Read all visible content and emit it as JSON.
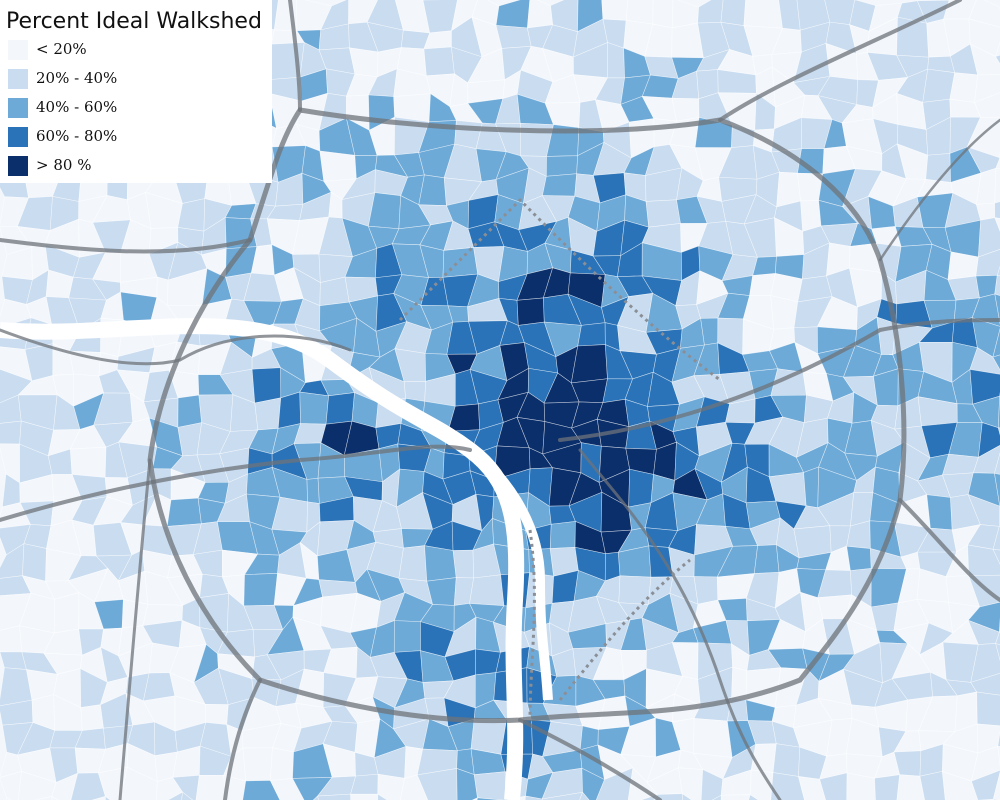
{
  "legend": {
    "title": "Percent Ideal Walkshed",
    "items": [
      {
        "label": "< 20%",
        "color": "#f3f7fc"
      },
      {
        "label": "20% - 40%",
        "color": "#c9dcf0"
      },
      {
        "label": "40% - 60%",
        "color": "#6eaad8"
      },
      {
        "label": "60% - 80%",
        "color": "#2a73b8"
      },
      {
        "label": "> 80 %",
        "color": "#0b2f6b"
      }
    ]
  }
}
